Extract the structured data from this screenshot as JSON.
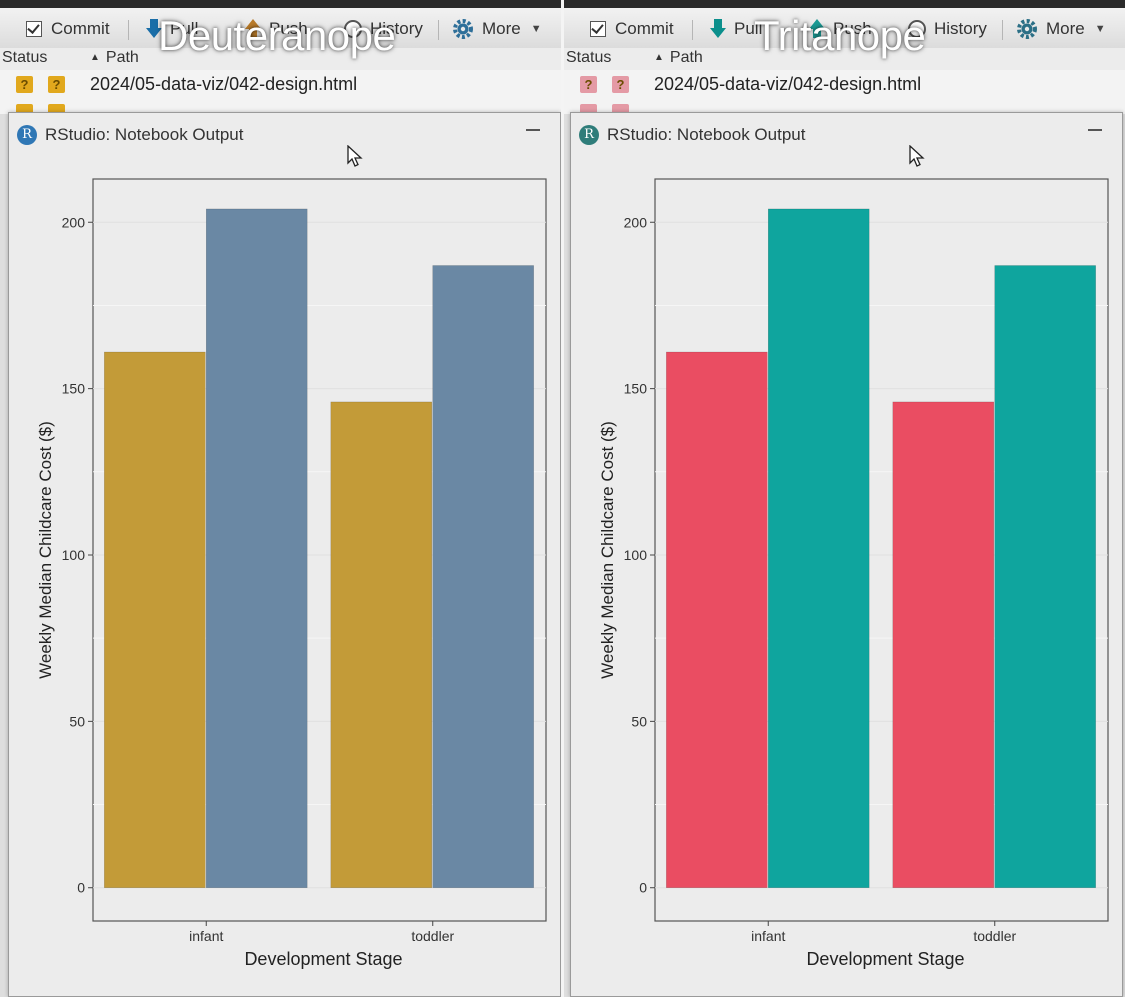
{
  "panels": [
    {
      "overlay_title": "Deuteranope",
      "toolbar": {
        "commit": "Commit",
        "pull": "Pull",
        "push": "Push",
        "history": "History",
        "more": "More"
      },
      "columns": {
        "status": "Status",
        "path": "Path"
      },
      "files": [
        {
          "path": "2024/05-data-viz/042-design.html"
        }
      ],
      "badge_color": "#e1a81d",
      "window_title": "RStudio: Notebook Output",
      "colors": {
        "bar_a": "#c39b38",
        "bar_b": "#6a88a4"
      }
    },
    {
      "overlay_title": "Tritanope",
      "toolbar": {
        "commit": "Commit",
        "pull": "Pull",
        "push": "Push",
        "history": "History",
        "more": "More"
      },
      "columns": {
        "status": "Status",
        "path": "Path"
      },
      "files": [
        {
          "path": "2024/05-data-viz/042-design.html"
        }
      ],
      "badge_color": "#e49aa5",
      "window_title": "RStudio: Notebook Output",
      "colors": {
        "bar_a": "#ea4d62",
        "bar_b": "#0fa59e"
      }
    }
  ],
  "chart_data": {
    "type": "bar",
    "categories": [
      "infant",
      "toddler"
    ],
    "series": [
      {
        "values": [
          161,
          146
        ]
      },
      {
        "values": [
          204,
          187
        ]
      }
    ],
    "xlabel": "Development Stage",
    "ylabel": "Weekly Median Childcare Cost ($)",
    "yticks": [
      0,
      50,
      100,
      150,
      200
    ],
    "ylim": [
      -10,
      213
    ],
    "grid": true,
    "legend": "none"
  }
}
